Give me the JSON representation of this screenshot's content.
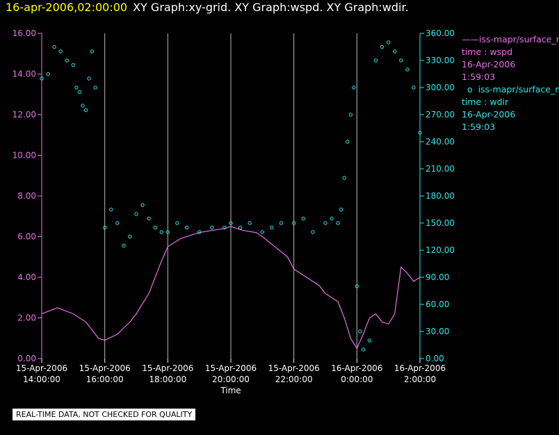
{
  "title": {
    "time": "16-apr-2006,02:00:00",
    "graphs": "XY Graph:xy-grid.  XY Graph:wspd.  XY Graph:wdir."
  },
  "legend": {
    "wspd": {
      "marker": "——",
      "name": "iss-mapr/surface_m",
      "field": "time : wspd",
      "date": "16-Apr-2006",
      "time": "1:59:03"
    },
    "wdir": {
      "marker": "o",
      "name": "iss-mapr/surface_m",
      "field": "time : wdir",
      "date": "16-Apr-2006",
      "time": "1:59:03"
    }
  },
  "note": "REAL-TIME DATA, NOT CHECKED FOR QUALITY",
  "colors": {
    "wspd": "#e673e6",
    "wdir": "#33e6e6",
    "left_axis": "#e673e6",
    "right_axis": "#33e6e6",
    "grid": "#bbbbbb",
    "background": "#000000",
    "title_time": "#ffff00"
  },
  "chart_data": {
    "type": "line",
    "xlabel": "Time",
    "x_ticks": [
      {
        "t": 0,
        "date": "15-Apr-2006",
        "time": "14:00:00"
      },
      {
        "t": 2,
        "date": "15-Apr-2006",
        "time": "16:00:00"
      },
      {
        "t": 4,
        "date": "15-Apr-2006",
        "time": "18:00:00"
      },
      {
        "t": 6,
        "date": "15-Apr-2006",
        "time": "20:00:00"
      },
      {
        "t": 8,
        "date": "15-Apr-2006",
        "time": "22:00:00"
      },
      {
        "t": 10,
        "date": "16-Apr-2006",
        "time": "0:00:00"
      },
      {
        "t": 12,
        "date": "16-Apr-2006",
        "time": "2:00:00"
      }
    ],
    "x_range": [
      0,
      12
    ],
    "left_axis": {
      "range": [
        0,
        16
      ],
      "ticks": [
        "0.00",
        "2.00",
        "4.00",
        "6.00",
        "8.00",
        "10.00",
        "12.00",
        "14.00",
        "16.00"
      ]
    },
    "right_axis": {
      "range": [
        0,
        360
      ],
      "ticks": [
        "0.00",
        "30.00",
        "60.00",
        "90.00",
        "120.00",
        "150.00",
        "180.00",
        "210.00",
        "240.00",
        "270.00",
        "300.00",
        "330.00",
        "360.00"
      ]
    },
    "grid": "vertical",
    "series": [
      {
        "name": "time : wspd",
        "axis": "left",
        "style": "line",
        "x": [
          0,
          0.5,
          1,
          1.4,
          1.8,
          2,
          2.4,
          2.8,
          3,
          3.4,
          3.8,
          4,
          4.4,
          4.8,
          5,
          5.4,
          5.8,
          6,
          6.4,
          6.8,
          7,
          7.4,
          7.8,
          8,
          8.4,
          8.8,
          9,
          9.4,
          9.6,
          9.8,
          10,
          10.2,
          10.4,
          10.6,
          10.8,
          11,
          11.2,
          11.4,
          11.6,
          11.8,
          12
        ],
        "y": [
          2.2,
          2.5,
          2.2,
          1.8,
          1.0,
          0.9,
          1.2,
          1.8,
          2.2,
          3.2,
          4.8,
          5.5,
          5.9,
          6.1,
          6.2,
          6.3,
          6.4,
          6.5,
          6.3,
          6.2,
          6.0,
          5.5,
          5.0,
          4.4,
          4.0,
          3.6,
          3.2,
          2.8,
          2.0,
          1.0,
          0.5,
          1.2,
          2.0,
          2.2,
          1.8,
          1.7,
          2.2,
          4.5,
          4.2,
          3.8,
          4.0
        ]
      },
      {
        "name": "time : wdir",
        "axis": "right",
        "style": "points",
        "x": [
          0,
          0.2,
          0.4,
          0.6,
          0.8,
          1,
          1.1,
          1.2,
          1.3,
          1.4,
          1.5,
          1.6,
          1.7,
          2,
          2.2,
          2.4,
          2.6,
          2.8,
          3,
          3.2,
          3.4,
          3.6,
          3.8,
          4,
          4.3,
          4.6,
          5,
          5.4,
          5.8,
          6,
          6.3,
          6.6,
          7,
          7.3,
          7.6,
          8,
          8.3,
          8.6,
          9,
          9.2,
          9.4,
          9.5,
          9.6,
          9.7,
          9.8,
          9.9,
          10,
          10.1,
          10.2,
          10.4,
          10.6,
          10.8,
          11,
          11.2,
          11.4,
          11.6,
          11.8,
          12
        ],
        "y": [
          310,
          315,
          345,
          340,
          330,
          325,
          300,
          295,
          280,
          275,
          310,
          340,
          300,
          145,
          165,
          150,
          125,
          135,
          160,
          170,
          155,
          145,
          140,
          140,
          150,
          145,
          140,
          145,
          145,
          150,
          145,
          150,
          140,
          145,
          150,
          150,
          155,
          140,
          150,
          155,
          150,
          165,
          200,
          240,
          270,
          300,
          80,
          30,
          10,
          20,
          330,
          345,
          350,
          340,
          330,
          320,
          300,
          250
        ]
      }
    ]
  }
}
